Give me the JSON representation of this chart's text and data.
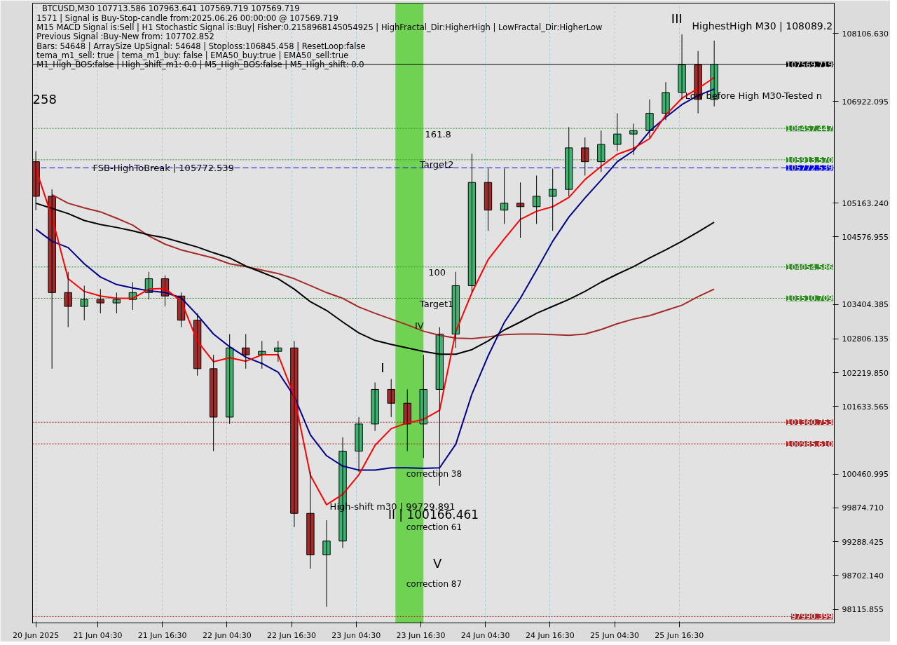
{
  "chart_data": {
    "type": "candlestick",
    "title": "BTCUSD,M30  107713.586 107963.641 107569.719 107569.719",
    "x": [
      "2025-06-20T17:00",
      "2025-06-20T20:00",
      "2025-06-20T23:00",
      "2025-06-21T02:00",
      "2025-06-21T05:00",
      "2025-06-21T08:00",
      "2025-06-21T11:00",
      "2025-06-21T14:00",
      "2025-06-21T17:00",
      "2025-06-21T20:00",
      "2025-06-21T23:00",
      "2025-06-22T02:00",
      "2025-06-22T05:00",
      "2025-06-22T08:00",
      "2025-06-22T11:00",
      "2025-06-22T14:00",
      "2025-06-22T17:00",
      "2025-06-22T20:00",
      "2025-06-22T23:00",
      "2025-06-23T02:00",
      "2025-06-23T05:00",
      "2025-06-23T08:00",
      "2025-06-23T11:00",
      "2025-06-23T14:00",
      "2025-06-23T17:00",
      "2025-06-23T20:00",
      "2025-06-23T23:00",
      "2025-06-24T02:00",
      "2025-06-24T05:00",
      "2025-06-24T08:00",
      "2025-06-24T11:00",
      "2025-06-24T14:00",
      "2025-06-24T17:00",
      "2025-06-24T20:00",
      "2025-06-24T23:00",
      "2025-06-25T02:00",
      "2025-06-25T05:00",
      "2025-06-25T08:00",
      "2025-06-25T11:00",
      "2025-06-25T14:00",
      "2025-06-25T17:00",
      "2025-06-25T20:00",
      "2025-06-25T23:00"
    ],
    "ohlc": [
      [
        105880,
        106060,
        105040,
        105280
      ],
      [
        105280,
        105400,
        102290,
        103610
      ],
      [
        103610,
        103970,
        103010,
        103370
      ],
      [
        103370,
        103730,
        103130,
        103490
      ],
      [
        103490,
        103670,
        103250,
        103430
      ],
      [
        103430,
        103610,
        103250,
        103490
      ],
      [
        103490,
        103790,
        103310,
        103610
      ],
      [
        103610,
        103970,
        103490,
        103850
      ],
      [
        103850,
        103910,
        103370,
        103550
      ],
      [
        103550,
        103610,
        103010,
        103130
      ],
      [
        103130,
        103250,
        102170,
        102290
      ],
      [
        102290,
        102530,
        100860,
        101450
      ],
      [
        101450,
        102890,
        101330,
        102650
      ],
      [
        102650,
        102890,
        102290,
        102530
      ],
      [
        102530,
        102770,
        102290,
        102590
      ],
      [
        102590,
        102770,
        102410,
        102650
      ],
      [
        102650,
        102770,
        99540,
        99780
      ],
      [
        99780,
        100500,
        98820,
        99060
      ],
      [
        99060,
        99660,
        98160,
        99300
      ],
      [
        99300,
        101100,
        99180,
        100860
      ],
      [
        100860,
        101450,
        100500,
        101330
      ],
      [
        101330,
        102050,
        101210,
        101930
      ],
      [
        101930,
        102110,
        101450,
        101690
      ],
      [
        101690,
        101930,
        100860,
        101330
      ],
      [
        101330,
        102530,
        100740,
        101930
      ],
      [
        101930,
        103010,
        100260,
        102890
      ],
      [
        102890,
        103970,
        102650,
        103730
      ],
      [
        103730,
        106020,
        103610,
        105520
      ],
      [
        105520,
        105760,
        104680,
        105040
      ],
      [
        105040,
        105760,
        104800,
        105160
      ],
      [
        105160,
        105520,
        104560,
        105100
      ],
      [
        105100,
        105640,
        104800,
        105280
      ],
      [
        105280,
        105760,
        104680,
        105400
      ],
      [
        105400,
        106480,
        105280,
        106120
      ],
      [
        106120,
        106300,
        105640,
        105880
      ],
      [
        105880,
        106420,
        105700,
        106180
      ],
      [
        106180,
        106720,
        106060,
        106360
      ],
      [
        106360,
        106540,
        106000,
        106420
      ],
      [
        106420,
        106960,
        106300,
        106720
      ],
      [
        106720,
        107260,
        106600,
        107080
      ],
      [
        107080,
        108089,
        106960,
        107560
      ],
      [
        107560,
        107800,
        106720,
        106960
      ],
      [
        106960,
        107980,
        106840,
        107569.719
      ]
    ],
    "colors": [
      "#a52a2a",
      "#a52a2a",
      "#a52a2a",
      "#3cb371",
      "#a52a2a",
      "#3cb371",
      "#3cb371",
      "#3cb371",
      "#a52a2a",
      "#a52a2a",
      "#a52a2a",
      "#a52a2a",
      "#3cb371",
      "#a52a2a",
      "#3cb371",
      "#3cb371",
      "#a52a2a",
      "#a52a2a",
      "#3cb371",
      "#3cb371",
      "#3cb371",
      "#3cb371",
      "#a52a2a",
      "#a52a2a",
      "#3cb371",
      "#3cb371",
      "#3cb371",
      "#3cb371",
      "#a52a2a",
      "#3cb371",
      "#a52a2a",
      "#3cb371",
      "#3cb371",
      "#3cb371",
      "#a52a2a",
      "#3cb371",
      "#3cb371",
      "#3cb371",
      "#3cb371",
      "#3cb371",
      "#3cb371",
      "#a52a2a",
      "#3cb371"
    ],
    "series": [
      {
        "type": "line",
        "color": "#a52a2a",
        "values": [
          null,
          105310,
          105160,
          105080,
          105010,
          104900,
          104780,
          104590,
          104450,
          104350,
          104280,
          104210,
          104110,
          104060,
          104000,
          103940,
          103850,
          103730,
          103610,
          103510,
          103360,
          103250,
          103150,
          103050,
          102940,
          102870,
          102820,
          102810,
          102840,
          102880,
          102890,
          102890,
          102880,
          102870,
          102890,
          102970,
          103070,
          103150,
          103210,
          103300,
          103390,
          103540,
          103670
        ]
      },
      {
        "type": "line",
        "color": "#000000",
        "values": [
          105160,
          105070,
          104980,
          104860,
          104790,
          104740,
          104680,
          104610,
          104560,
          104480,
          104400,
          104300,
          104210,
          104070,
          103960,
          103850,
          103670,
          103450,
          103300,
          103100,
          102910,
          102780,
          102710,
          102650,
          102590,
          102540,
          102540,
          102620,
          102770,
          102960,
          103100,
          103250,
          103370,
          103490,
          103630,
          103790,
          103930,
          104060,
          104210,
          104350,
          104500,
          104660,
          104830
        ]
      },
      {
        "type": "line",
        "color": "#00008b",
        "values": [
          104710,
          104500,
          104390,
          104110,
          103880,
          103750,
          103690,
          103640,
          103610,
          103520,
          103220,
          102890,
          102670,
          102490,
          102380,
          102230,
          101810,
          101140,
          100780,
          100600,
          100530,
          100530,
          100570,
          100570,
          100560,
          100570,
          100980,
          101850,
          102510,
          103090,
          103510,
          104000,
          104500,
          104920,
          105250,
          105560,
          105880,
          106070,
          106410,
          106650,
          106870,
          107030,
          107140
        ]
      },
      {
        "type": "line",
        "color": "#ff0000",
        "values": [
          105760,
          104920,
          103850,
          103630,
          103550,
          103510,
          103510,
          103670,
          103680,
          103460,
          102770,
          102410,
          102480,
          102420,
          102530,
          102530,
          101810,
          100440,
          99930,
          100110,
          100450,
          100960,
          101250,
          101350,
          101410,
          101570,
          102930,
          103610,
          104180,
          104540,
          104880,
          105020,
          105100,
          105260,
          105570,
          105800,
          106010,
          106110,
          106280,
          106690,
          106980,
          107150,
          107340
        ]
      }
    ],
    "xlim": [
      "2025-06-20T16:24",
      "2025-06-26T21:18"
    ],
    "ylim": [
      97880,
      108630
    ],
    "xticks": [
      {
        "value": "2025-06-20T17:00",
        "label": "20 Jun 2025"
      },
      {
        "value": "2025-06-21T04:30",
        "label": "21 Jun 04:30"
      },
      {
        "value": "2025-06-21T16:30",
        "label": "21 Jun 16:30"
      },
      {
        "value": "2025-06-22T04:30",
        "label": "22 Jun 04:30"
      },
      {
        "value": "2025-06-22T16:30",
        "label": "22 Jun 16:30"
      },
      {
        "value": "2025-06-23T04:30",
        "label": "23 Jun 04:30"
      },
      {
        "value": "2025-06-23T16:30",
        "label": "23 Jun 16:30"
      },
      {
        "value": "2025-06-24T04:30",
        "label": "24 Jun 04:30"
      },
      {
        "value": "2025-06-24T16:30",
        "label": "24 Jun 16:30"
      },
      {
        "value": "2025-06-25T04:30",
        "label": "25 Jun 04:30"
      },
      {
        "value": "2025-06-25T16:30",
        "label": "25 Jun 16:30"
      }
    ],
    "yticks": [
      98115.855,
      {
        "value": 98702.14,
        "label": "98702.140"
      },
      99288.425,
      {
        "value": 99874.71,
        "label": "99874.710"
      },
      100460.995,
      101633.565,
      {
        "value": 102219.85,
        "label": "102219.850"
      },
      102806.135,
      103404.385,
      104576.955,
      {
        "value": 105163.24,
        "label": "105163.240"
      },
      106922.095,
      {
        "value": 108106.63,
        "label": "108106.630"
      }
    ],
    "grid": "x",
    "ref_lines": [
      {
        "axis": "y",
        "value": 107569.719,
        "label": "107569.719",
        "color": "#000000",
        "line_style": "solid"
      },
      {
        "axis": "y",
        "value": 106457.447,
        "label": "106457.447",
        "color": "#2e8b22",
        "line_style": "dotted"
      },
      {
        "axis": "y",
        "value": 105913.57,
        "label": "105913.570",
        "color": "#2e8b22",
        "line_style": "dotted"
      },
      {
        "axis": "y",
        "value": 105772.539,
        "label": "105772.539",
        "color": "#0000ff",
        "line_style": "dashed"
      },
      {
        "axis": "y",
        "value": 104054.586,
        "label": "104054.586",
        "color": "#2e8b22",
        "line_style": "dotted"
      },
      {
        "axis": "y",
        "value": 103510.709,
        "label": "103510.709",
        "color": "#2e8b22",
        "line_style": "dotted"
      },
      {
        "axis": "y",
        "value": 101360.753,
        "label": "101360.753",
        "color": "#b22222",
        "line_style": "dotted"
      },
      {
        "axis": "y",
        "value": 100985.61,
        "label": "100985.610",
        "color": "#b22222",
        "line_style": "dotted"
      },
      {
        "axis": "y",
        "value": 97990.399,
        "label": "97990.399",
        "color": "#b22222",
        "line_style": "dotted"
      }
    ],
    "bands": [
      {
        "axis": "x",
        "from": "2025-06-23T11:48",
        "to": "2025-06-23T17:00",
        "color": "#5ccf3a"
      }
    ],
    "annotations": [
      "1571 | Signal is Buy-Stop-candle from:2025.06.26 00:00:00 @ 107569.719",
      "M15 MACD Signal is:Sell | H1 Stochastic Signal is:Buy| Fisher:0.2158968145054925 | HighFractal_Dir:HigherHigh | LowFractal_Dir:HigherLow",
      "Previous Signal :Buy-New from: 107702.852",
      "Bars: 54648 | ArraySize UpSignal: 54648 | Stoploss:106845.458 | ResetLoop:false",
      "tema_m1_sell: true | tema_m1_buy: false | EMA50_buy:true | EMA50_sell:true",
      "M1_High_BOS:false | High_shift_m1: 0.0 | M5_High_BOS:false | M5_High_shift: 0.0",
      {
        "text": "FSB-HighToBreak | 105772.539",
        "x": "2025-06-21T03:36",
        "y": 105772.539
      },
      {
        "text": "161.8",
        "x": "2025-06-23T17:18",
        "y": 106360
      },
      {
        "text": "Target2",
        "x": "2025-06-23T16:18",
        "y": 105830
      },
      "100",
      "Target1",
      {
        "text": "IV",
        "x": "2025-06-23T15:24",
        "y": 103040
      },
      "I",
      "III",
      "HighestHigh   M30 | 108089.2",
      {
        "text": "Low before High   M30-Tested n",
        "x": "2025-06-25T17:36",
        "y": 107020
      },
      "258",
      {
        "text": "High-shift m30 | 99729.891",
        "x": "2025-06-22T23:36",
        "y": 99900
      },
      "II | 100166.461",
      "correction 38",
      "correction 61",
      "correction 87",
      "V"
    ]
  }
}
